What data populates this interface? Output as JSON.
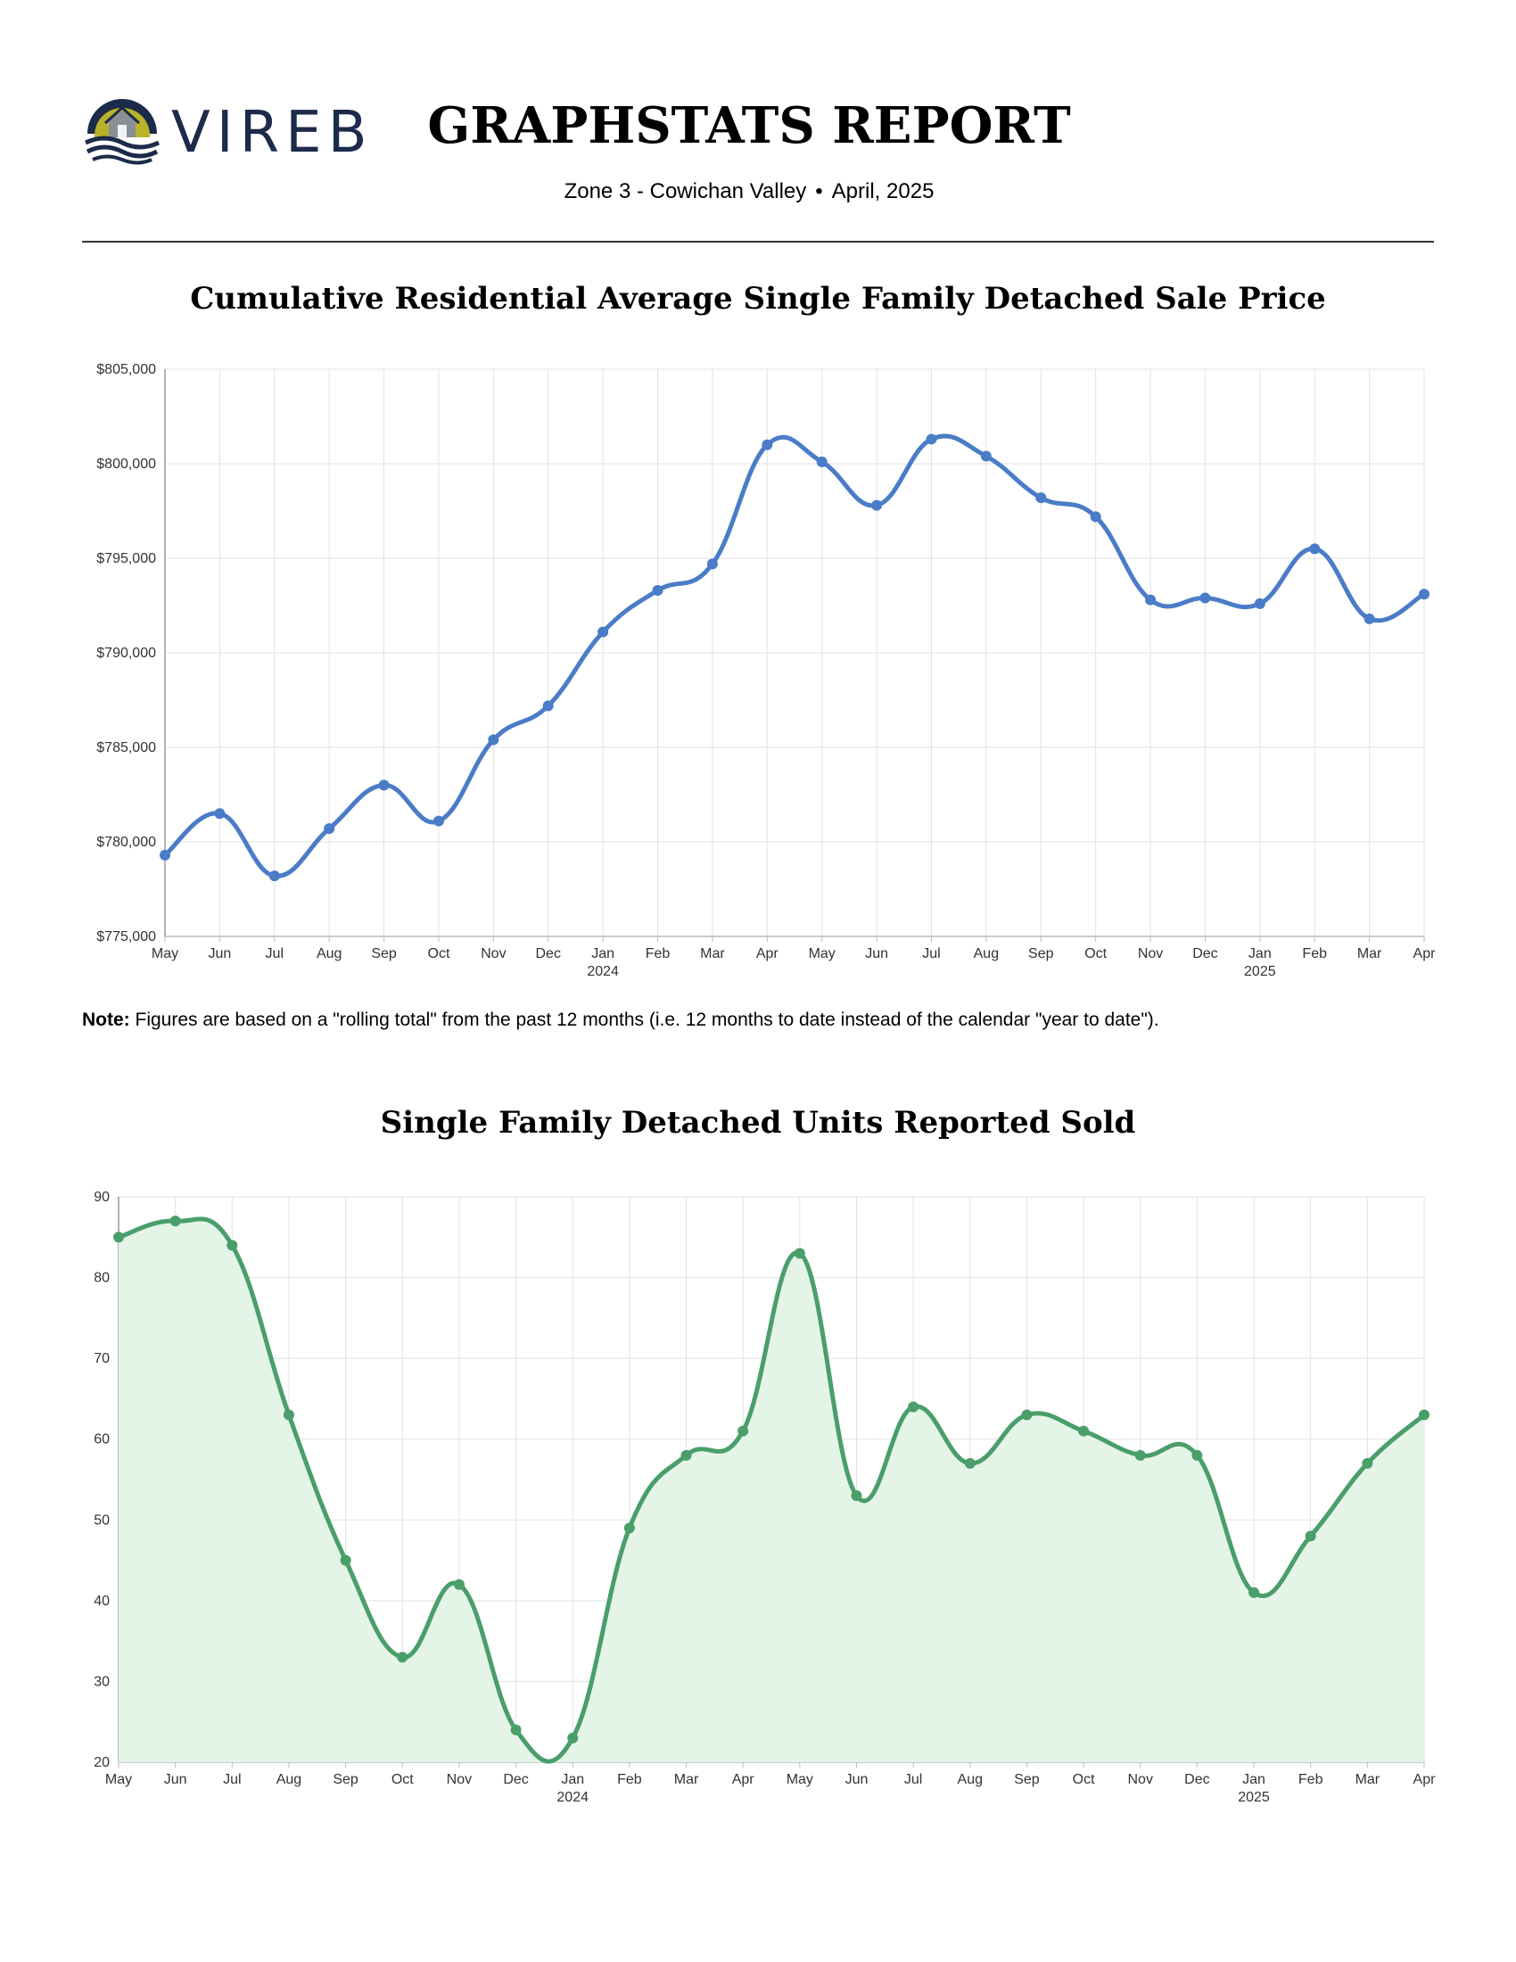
{
  "brand": {
    "name": "VIREB"
  },
  "header": {
    "title": "GRAPHSTATS REPORT",
    "zone": "Zone 3 - Cowichan Valley",
    "separator": "•",
    "period": "April, 2025"
  },
  "note": {
    "label": "Note:",
    "text": " Figures are based on a \"rolling total\" from the past 12 months (i.e. 12 months to date instead of the calendar \"year to date\")."
  },
  "colors": {
    "price_line": "#4a7cc7",
    "units_line": "#4a9e6a",
    "units_fill": "#e4f5e8",
    "logo_navy": "#1c2b4a",
    "logo_gold": "#b9b22a"
  },
  "chart_data": [
    {
      "type": "line",
      "title": "Cumulative Residential Average Single Family Detached Sale Price",
      "categories": [
        "May",
        "Jun",
        "Jul",
        "Aug",
        "Sep",
        "Oct",
        "Nov",
        "Dec",
        "Jan",
        "Feb",
        "Mar",
        "Apr",
        "May",
        "Jun",
        "Jul",
        "Aug",
        "Sep",
        "Oct",
        "Nov",
        "Dec",
        "Jan",
        "Feb",
        "Mar",
        "Apr"
      ],
      "year_labels": {
        "8": "2024",
        "20": "2025"
      },
      "values": [
        779300,
        781500,
        778200,
        780700,
        783000,
        781100,
        785400,
        787200,
        791100,
        793300,
        794700,
        801000,
        800100,
        797800,
        801300,
        800400,
        798200,
        797200,
        792800,
        792900,
        792600,
        795500,
        791800,
        793100
      ],
      "ylim": [
        775000,
        805000
      ],
      "yticks": [
        775000,
        780000,
        785000,
        790000,
        795000,
        800000,
        805000
      ],
      "ytick_labels": [
        "$775,000",
        "$780,000",
        "$785,000",
        "$790,000",
        "$795,000",
        "$800,000",
        "$805,000"
      ],
      "grid": true
    },
    {
      "type": "area",
      "title": "Single Family Detached Units Reported Sold",
      "categories": [
        "May",
        "Jun",
        "Jul",
        "Aug",
        "Sep",
        "Oct",
        "Nov",
        "Dec",
        "Jan",
        "Feb",
        "Mar",
        "Apr",
        "May",
        "Jun",
        "Jul",
        "Aug",
        "Sep",
        "Oct",
        "Nov",
        "Dec",
        "Jan",
        "Feb",
        "Mar",
        "Apr"
      ],
      "year_labels": {
        "8": "2024",
        "20": "2025"
      },
      "values": [
        85,
        87,
        84,
        63,
        45,
        33,
        42,
        24,
        23,
        49,
        58,
        61,
        83,
        53,
        64,
        57,
        63,
        61,
        58,
        58,
        41,
        48,
        57,
        63
      ],
      "ylim": [
        20,
        90
      ],
      "yticks": [
        20,
        30,
        40,
        50,
        60,
        70,
        80,
        90
      ],
      "ytick_labels": [
        "20",
        "30",
        "40",
        "50",
        "60",
        "70",
        "80",
        "90"
      ],
      "grid": true
    }
  ]
}
